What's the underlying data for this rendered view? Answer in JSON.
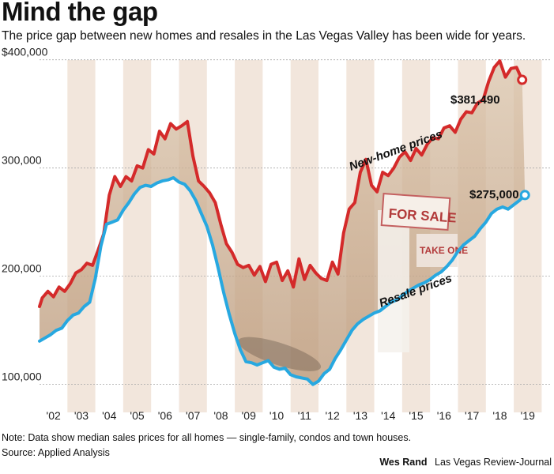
{
  "header": {
    "title": "Mind the gap",
    "subtitle": "The price gap between new homes and resales in the Las Vegas Valley has been wide for years."
  },
  "footer": {
    "note": "Note: Data show median sales prices for all homes — single-family, condos and town houses.",
    "source": "Source: Applied Analysis",
    "author": "Wes Rand",
    "publication": "Las Vegas Review-Journal"
  },
  "colors": {
    "new_home": "#d42a2a",
    "resale": "#27a8e0",
    "band": "#f2e6dc",
    "gap_fill": "#e2d0bc"
  },
  "chart_data": {
    "type": "line",
    "x_categories": [
      "'02",
      "'03",
      "'04",
      "'05",
      "'06",
      "'07",
      "'08",
      "'09",
      "'10",
      "'11",
      "'12",
      "'13",
      "'14",
      "'15",
      "'16",
      "'17",
      "'18",
      "'19"
    ],
    "ylim": [
      80000,
      410000
    ],
    "y_ticks": [
      {
        "value": 100000,
        "label": "100,000"
      },
      {
        "value": 200000,
        "label": "200,000"
      },
      {
        "value": 300000,
        "label": "300,000"
      },
      {
        "value": 400000,
        "label": "$400,000"
      }
    ],
    "grid": true,
    "alternating_year_bands": true,
    "series": [
      {
        "name": "New-home prices",
        "color": "#d42a2a",
        "points": [
          [
            2002.0,
            172000
          ],
          [
            2002.1,
            180000
          ],
          [
            2002.3,
            186000
          ],
          [
            2002.5,
            181000
          ],
          [
            2002.7,
            190000
          ],
          [
            2002.9,
            186000
          ],
          [
            2003.1,
            193000
          ],
          [
            2003.3,
            203000
          ],
          [
            2003.5,
            206000
          ],
          [
            2003.7,
            212000
          ],
          [
            2003.9,
            210000
          ],
          [
            2004.1,
            224000
          ],
          [
            2004.3,
            239000
          ],
          [
            2004.5,
            275000
          ],
          [
            2004.7,
            292000
          ],
          [
            2004.9,
            283000
          ],
          [
            2005.1,
            292000
          ],
          [
            2005.3,
            288000
          ],
          [
            2005.5,
            302000
          ],
          [
            2005.7,
            300000
          ],
          [
            2005.9,
            317000
          ],
          [
            2006.1,
            313000
          ],
          [
            2006.3,
            334000
          ],
          [
            2006.5,
            327000
          ],
          [
            2006.7,
            341000
          ],
          [
            2006.9,
            336000
          ],
          [
            2007.1,
            339000
          ],
          [
            2007.3,
            343000
          ],
          [
            2007.5,
            311000
          ],
          [
            2007.7,
            288000
          ],
          [
            2007.9,
            283000
          ],
          [
            2008.1,
            277000
          ],
          [
            2008.3,
            268000
          ],
          [
            2008.5,
            248000
          ],
          [
            2008.7,
            230000
          ],
          [
            2008.9,
            222000
          ],
          [
            2009.1,
            211000
          ],
          [
            2009.3,
            208000
          ],
          [
            2009.5,
            210000
          ],
          [
            2009.7,
            201000
          ],
          [
            2009.9,
            209000
          ],
          [
            2010.1,
            195000
          ],
          [
            2010.3,
            211000
          ],
          [
            2010.5,
            213000
          ],
          [
            2010.7,
            196000
          ],
          [
            2010.9,
            205000
          ],
          [
            2011.1,
            190000
          ],
          [
            2011.3,
            216000
          ],
          [
            2011.5,
            197000
          ],
          [
            2011.7,
            210000
          ],
          [
            2011.9,
            203000
          ],
          [
            2012.1,
            198000
          ],
          [
            2012.3,
            196000
          ],
          [
            2012.5,
            213000
          ],
          [
            2012.7,
            202000
          ],
          [
            2012.9,
            240000
          ],
          [
            2013.1,
            262000
          ],
          [
            2013.3,
            268000
          ],
          [
            2013.5,
            296000
          ],
          [
            2013.7,
            308000
          ],
          [
            2013.9,
            284000
          ],
          [
            2014.1,
            278000
          ],
          [
            2014.3,
            296000
          ],
          [
            2014.5,
            293000
          ],
          [
            2014.7,
            300000
          ],
          [
            2014.9,
            310000
          ],
          [
            2015.1,
            315000
          ],
          [
            2015.3,
            307000
          ],
          [
            2015.5,
            318000
          ],
          [
            2015.7,
            312000
          ],
          [
            2015.9,
            322000
          ],
          [
            2016.1,
            328000
          ],
          [
            2016.3,
            327000
          ],
          [
            2016.5,
            337000
          ],
          [
            2016.7,
            339000
          ],
          [
            2016.9,
            333000
          ],
          [
            2017.1,
            345000
          ],
          [
            2017.3,
            352000
          ],
          [
            2017.5,
            351000
          ],
          [
            2017.7,
            360000
          ],
          [
            2017.9,
            363000
          ],
          [
            2018.1,
            380000
          ],
          [
            2018.3,
            393000
          ],
          [
            2018.5,
            399000
          ],
          [
            2018.7,
            384000
          ],
          [
            2018.9,
            392000
          ],
          [
            2019.1,
            393000
          ],
          [
            2019.3,
            381490
          ]
        ]
      },
      {
        "name": "Resale prices",
        "color": "#27a8e0",
        "points": [
          [
            2002.0,
            140000
          ],
          [
            2002.2,
            143000
          ],
          [
            2002.4,
            146000
          ],
          [
            2002.6,
            150000
          ],
          [
            2002.8,
            152000
          ],
          [
            2003.0,
            159000
          ],
          [
            2003.2,
            164000
          ],
          [
            2003.4,
            166000
          ],
          [
            2003.6,
            172000
          ],
          [
            2003.8,
            176000
          ],
          [
            2004.0,
            198000
          ],
          [
            2004.2,
            228000
          ],
          [
            2004.4,
            248000
          ],
          [
            2004.6,
            250000
          ],
          [
            2004.8,
            252000
          ],
          [
            2005.0,
            261000
          ],
          [
            2005.2,
            268000
          ],
          [
            2005.4,
            276000
          ],
          [
            2005.6,
            282000
          ],
          [
            2005.8,
            284000
          ],
          [
            2006.0,
            283000
          ],
          [
            2006.2,
            286000
          ],
          [
            2006.4,
            288000
          ],
          [
            2006.6,
            289000
          ],
          [
            2006.8,
            291000
          ],
          [
            2007.0,
            287000
          ],
          [
            2007.2,
            285000
          ],
          [
            2007.4,
            279000
          ],
          [
            2007.6,
            270000
          ],
          [
            2007.8,
            258000
          ],
          [
            2008.0,
            246000
          ],
          [
            2008.2,
            229000
          ],
          [
            2008.4,
            208000
          ],
          [
            2008.6,
            185000
          ],
          [
            2008.8,
            165000
          ],
          [
            2009.0,
            147000
          ],
          [
            2009.2,
            132000
          ],
          [
            2009.4,
            121000
          ],
          [
            2009.6,
            120000
          ],
          [
            2009.8,
            118000
          ],
          [
            2010.0,
            120000
          ],
          [
            2010.2,
            122000
          ],
          [
            2010.4,
            116000
          ],
          [
            2010.6,
            114000
          ],
          [
            2010.8,
            115000
          ],
          [
            2011.0,
            109000
          ],
          [
            2011.2,
            107000
          ],
          [
            2011.4,
            106000
          ],
          [
            2011.6,
            105000
          ],
          [
            2011.8,
            100000
          ],
          [
            2012.0,
            103000
          ],
          [
            2012.2,
            110000
          ],
          [
            2012.4,
            114000
          ],
          [
            2012.6,
            124000
          ],
          [
            2012.8,
            132000
          ],
          [
            2013.0,
            141000
          ],
          [
            2013.2,
            150000
          ],
          [
            2013.4,
            156000
          ],
          [
            2013.6,
            160000
          ],
          [
            2013.8,
            163000
          ],
          [
            2014.0,
            166000
          ],
          [
            2014.2,
            168000
          ],
          [
            2014.4,
            172000
          ],
          [
            2014.6,
            176000
          ],
          [
            2014.8,
            178000
          ],
          [
            2015.0,
            182000
          ],
          [
            2015.2,
            186000
          ],
          [
            2015.4,
            189000
          ],
          [
            2015.6,
            192000
          ],
          [
            2015.8,
            194000
          ],
          [
            2016.0,
            197000
          ],
          [
            2016.2,
            201000
          ],
          [
            2016.4,
            204000
          ],
          [
            2016.6,
            209000
          ],
          [
            2016.8,
            215000
          ],
          [
            2017.0,
            223000
          ],
          [
            2017.2,
            229000
          ],
          [
            2017.4,
            233000
          ],
          [
            2017.6,
            237000
          ],
          [
            2017.8,
            244000
          ],
          [
            2018.0,
            250000
          ],
          [
            2018.2,
            258000
          ],
          [
            2018.4,
            262000
          ],
          [
            2018.6,
            264000
          ],
          [
            2018.8,
            262000
          ],
          [
            2019.0,
            266000
          ],
          [
            2019.2,
            270000
          ],
          [
            2019.4,
            275000
          ]
        ]
      }
    ],
    "annotations": [
      {
        "text": "$381,490"
      },
      {
        "text": "$275,000"
      }
    ],
    "sign_text": [
      "FOR SALE",
      "TAKE ONE"
    ]
  }
}
